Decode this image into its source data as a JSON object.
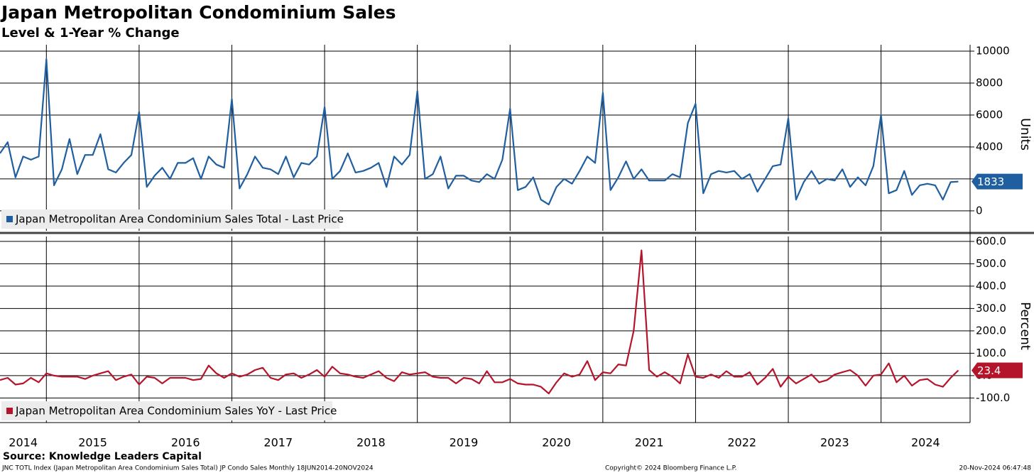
{
  "title": "Japan Metropolitan Condominium Sales",
  "subtitle": "Level & 1-Year % Change",
  "source": "Source: Knowledge Leaders Capital",
  "footer_left": "JNC TOTL Index (Japan Metropolitan Area Condominium Sales Total) JP Condo Sales  Monthly 18JUN2014-20NOV2024",
  "footer_center": "Copyright© 2024 Bloomberg Finance L.P.",
  "footer_right": "20-Nov-2024 06:47:48",
  "chart_data": [
    {
      "type": "line",
      "y_label": "Units",
      "x": [
        2014.5,
        2014.583,
        2014.667,
        2014.75,
        2014.833,
        2014.917,
        2015,
        2015.083,
        2015.167,
        2015.25,
        2015.333,
        2015.417,
        2015.5,
        2015.583,
        2015.667,
        2015.75,
        2015.833,
        2015.917,
        2016,
        2016.083,
        2016.167,
        2016.25,
        2016.333,
        2016.417,
        2016.5,
        2016.583,
        2016.667,
        2016.75,
        2016.833,
        2016.917,
        2017,
        2017.083,
        2017.167,
        2017.25,
        2017.333,
        2017.417,
        2017.5,
        2017.583,
        2017.667,
        2017.75,
        2017.833,
        2017.917,
        2018,
        2018.083,
        2018.167,
        2018.25,
        2018.333,
        2018.417,
        2018.5,
        2018.583,
        2018.667,
        2018.75,
        2018.833,
        2018.917,
        2019,
        2019.083,
        2019.167,
        2019.25,
        2019.333,
        2019.417,
        2019.5,
        2019.583,
        2019.667,
        2019.75,
        2019.833,
        2019.917,
        2020,
        2020.083,
        2020.167,
        2020.25,
        2020.333,
        2020.417,
        2020.5,
        2020.583,
        2020.667,
        2020.75,
        2020.833,
        2020.917,
        2021,
        2021.083,
        2021.167,
        2021.25,
        2021.333,
        2021.417,
        2021.5,
        2021.583,
        2021.667,
        2021.75,
        2021.833,
        2021.917,
        2022,
        2022.083,
        2022.167,
        2022.25,
        2022.333,
        2022.417,
        2022.5,
        2022.583,
        2022.667,
        2022.75,
        2022.833,
        2022.917,
        2023,
        2023.083,
        2023.167,
        2023.25,
        2023.333,
        2023.417,
        2023.5,
        2023.583,
        2023.667,
        2023.75,
        2023.833,
        2023.917,
        2024,
        2024.083,
        2024.167,
        2024.25,
        2024.333,
        2024.417,
        2024.5,
        2024.583,
        2024.667,
        2024.75,
        2024.833
      ],
      "xlim": [
        2014.5,
        2024.96
      ],
      "ylim": [
        -1250,
        10400
      ],
      "yticks": [
        0,
        2000,
        4000,
        6000,
        8000,
        10000
      ],
      "grid": true,
      "legend": "lower left",
      "series": [
        {
          "name": "Japan Metropolitan Area Condominium Sales Total - Last Price",
          "color": "#1f5fa0",
          "values": [
            3600,
            4300,
            2100,
            3400,
            3200,
            3400,
            9500,
            1600,
            2600,
            4500,
            2300,
            3500,
            3500,
            4800,
            2600,
            2400,
            3000,
            3500,
            6200,
            1500,
            2200,
            2700,
            2000,
            3000,
            3000,
            3300,
            2000,
            3400,
            2900,
            2700,
            7000,
            1400,
            2300,
            3400,
            2700,
            2600,
            2300,
            3400,
            2100,
            3000,
            2900,
            3400,
            6500,
            2000,
            2500,
            3600,
            2400,
            2500,
            2700,
            3000,
            1500,
            3400,
            2900,
            3500,
            7500,
            2000,
            2300,
            3400,
            1400,
            2200,
            2200,
            1900,
            1800,
            2300,
            2000,
            3200,
            6400,
            1300,
            1500,
            2100,
            700,
            400,
            1500,
            2000,
            1700,
            2500,
            3400,
            3000,
            7400,
            1300,
            2100,
            3100,
            2000,
            2600,
            1900,
            1900,
            1900,
            2300,
            2100,
            5500,
            6700,
            1100,
            2300,
            2500,
            2400,
            2500,
            2000,
            2300,
            1200,
            2000,
            2800,
            2900,
            5800,
            700,
            1800,
            2500,
            1700,
            2000,
            1900,
            2600,
            1500,
            2100,
            1600,
            2800,
            6000,
            1100,
            1300,
            2500,
            1000,
            1600,
            1700,
            1600,
            700,
            1800,
            1833
          ]
        }
      ]
    },
    {
      "type": "line",
      "y_label": "Percent",
      "xlim": [
        2014.5,
        2024.96
      ],
      "xticks": [
        {
          "value": 2014,
          "label": "2014"
        },
        {
          "value": 2015,
          "label": "2015"
        },
        {
          "value": 2016,
          "label": "2016"
        },
        {
          "value": 2017,
          "label": "2017"
        },
        {
          "value": 2018,
          "label": "2018"
        },
        {
          "value": 2019,
          "label": "2019"
        },
        {
          "value": 2020,
          "label": "2020"
        },
        {
          "value": 2021,
          "label": "2021"
        },
        {
          "value": 2022,
          "label": "2022"
        },
        {
          "value": 2023,
          "label": "2023"
        },
        {
          "value": 2024,
          "label": "2024"
        }
      ],
      "ylim": [
        -210,
        622
      ],
      "yticks": [
        {
          "value": -100,
          "label": "-100.0"
        },
        {
          "value": 0,
          "label": "0.0"
        },
        {
          "value": 100,
          "label": "100.0"
        },
        {
          "value": 200,
          "label": "200.0"
        },
        {
          "value": 300,
          "label": "300.0"
        },
        {
          "value": 400,
          "label": "400.0"
        },
        {
          "value": 500,
          "label": "500.0"
        },
        {
          "value": 600,
          "label": "600.0"
        }
      ],
      "grid": true,
      "legend": "lower left",
      "series": [
        {
          "name": "Japan Metropolitan Area Condominium Sales YoY - Last Price",
          "color": "#b5152b",
          "values": [
            -20,
            -10,
            -40,
            -35,
            -10,
            -30,
            10,
            0,
            -5,
            -5,
            -5,
            -15,
            0,
            10,
            20,
            -20,
            -5,
            5,
            -40,
            -5,
            -10,
            -35,
            -10,
            -10,
            -10,
            -20,
            -15,
            45,
            10,
            -10,
            10,
            -5,
            5,
            25,
            35,
            -10,
            -20,
            5,
            10,
            -10,
            5,
            25,
            -5,
            40,
            10,
            5,
            -5,
            -10,
            5,
            20,
            -10,
            -25,
            15,
            5,
            10,
            15,
            -5,
            -10,
            -10,
            -35,
            -10,
            -15,
            -35,
            20,
            -30,
            -30,
            -15,
            -35,
            -40,
            -40,
            -50,
            -80,
            -30,
            10,
            -5,
            5,
            65,
            -20,
            15,
            10,
            50,
            45,
            200,
            560,
            25,
            -5,
            15,
            -5,
            -35,
            95,
            -5,
            -10,
            5,
            -10,
            20,
            -5,
            -5,
            15,
            -40,
            -10,
            30,
            -50,
            -5,
            -35,
            -15,
            5,
            -30,
            -20,
            5,
            15,
            25,
            0,
            -45,
            0,
            5,
            55,
            -30,
            0,
            -45,
            -20,
            -15,
            -40,
            -50,
            -10,
            23.4
          ]
        }
      ]
    }
  ]
}
